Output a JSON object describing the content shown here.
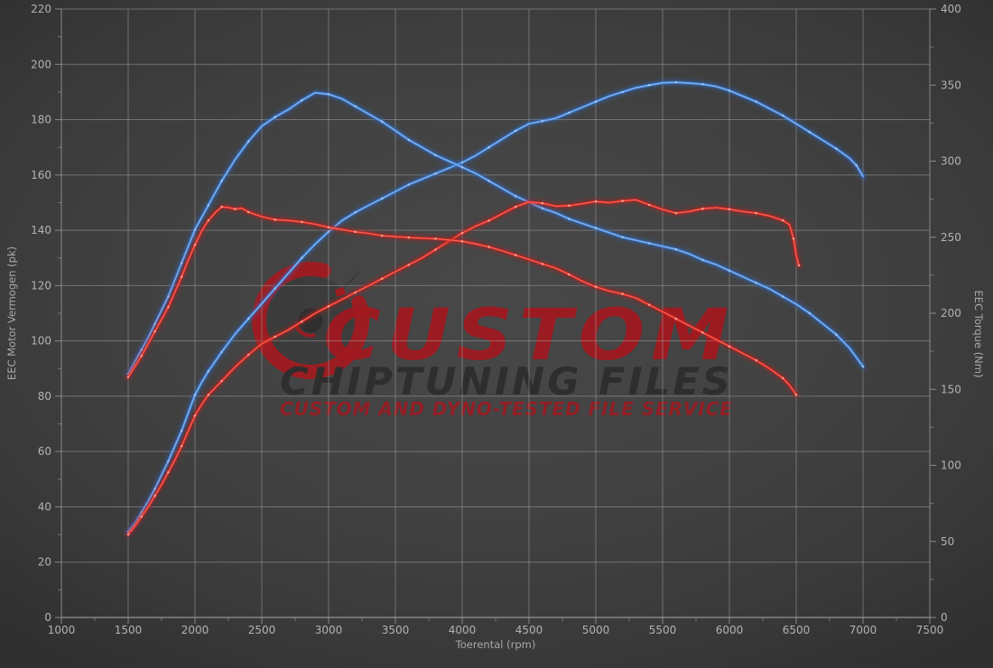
{
  "colors": {
    "background": "#414141",
    "grid": "#a6a6a6",
    "spine": "#9c9c9c",
    "axis_text": "#b2b2b2",
    "blue_core": "#5e9ce8",
    "blue_glow": "#2f6fce",
    "blue_marker": "#a9cdf7",
    "red_core": "#e8352b",
    "red_glow": "#c01d1d",
    "red_marker": "#ffb3a6",
    "watermark_red": "#ab151c",
    "watermark_dark": "#2c2c2c",
    "watermark_sub_red": "#a01820"
  },
  "watermark": {
    "line1": "CUSTOM",
    "line2": "CHIPTUNING FILES",
    "line3": "CUSTOM AND DYNO-TESTED FILE SERVICE"
  },
  "chart_data": {
    "type": "line",
    "title": "",
    "xlabel": "Toerental (rpm)",
    "ylabel_left": "EEC Motor Vermogen (pk)",
    "ylabel_right": "EEC Torque (Nm)",
    "xlim": [
      1000,
      7500
    ],
    "ylim_left": [
      0,
      220
    ],
    "ylim_right": [
      0,
      400
    ],
    "grid": true,
    "legend": "none",
    "x_ticks": [
      1000,
      1500,
      2000,
      2500,
      3000,
      3500,
      4000,
      4500,
      5000,
      5500,
      6000,
      6500,
      7000,
      7500
    ],
    "x_minor_step": 250,
    "y_left_ticks": [
      0,
      20,
      40,
      60,
      80,
      100,
      120,
      140,
      160,
      180,
      200,
      220
    ],
    "y_left_minor_step": 10,
    "y_right_ticks": [
      0,
      50,
      100,
      150,
      200,
      250,
      300,
      350,
      400
    ],
    "y_right_minor_step": 25,
    "series": [
      {
        "name": "tuned-power",
        "unit": "pk",
        "axis": "left",
        "palette": "blue",
        "peak": {
          "rpm": 5550,
          "value": 193.5
        },
        "points": [
          [
            1500,
            31
          ],
          [
            1550,
            34
          ],
          [
            1600,
            38
          ],
          [
            1650,
            42
          ],
          [
            1700,
            46.5
          ],
          [
            1750,
            51.5
          ],
          [
            1800,
            56.5
          ],
          [
            1850,
            62
          ],
          [
            1900,
            67.5
          ],
          [
            1950,
            74
          ],
          [
            2000,
            80.5
          ],
          [
            2050,
            85
          ],
          [
            2100,
            89
          ],
          [
            2150,
            92.5
          ],
          [
            2200,
            96
          ],
          [
            2300,
            102.5
          ],
          [
            2400,
            108
          ],
          [
            2500,
            113.5
          ],
          [
            2600,
            119
          ],
          [
            2700,
            124.5
          ],
          [
            2800,
            130
          ],
          [
            2900,
            135
          ],
          [
            3000,
            139.5
          ],
          [
            3100,
            143.5
          ],
          [
            3200,
            146.5
          ],
          [
            3300,
            149
          ],
          [
            3400,
            151.5
          ],
          [
            3500,
            154
          ],
          [
            3600,
            156.5
          ],
          [
            3700,
            158.5
          ],
          [
            3800,
            160.5
          ],
          [
            3900,
            162.5
          ],
          [
            4000,
            164.5
          ],
          [
            4100,
            167
          ],
          [
            4200,
            170
          ],
          [
            4300,
            173
          ],
          [
            4400,
            176
          ],
          [
            4500,
            178.5
          ],
          [
            4600,
            179.5
          ],
          [
            4700,
            180.5
          ],
          [
            4800,
            182.5
          ],
          [
            4900,
            184.5
          ],
          [
            5000,
            186.5
          ],
          [
            5100,
            188.5
          ],
          [
            5200,
            190
          ],
          [
            5300,
            191.5
          ],
          [
            5400,
            192.5
          ],
          [
            5500,
            193.3
          ],
          [
            5600,
            193.5
          ],
          [
            5700,
            193.2
          ],
          [
            5800,
            192.8
          ],
          [
            5900,
            192
          ],
          [
            6000,
            190.5
          ],
          [
            6100,
            188.5
          ],
          [
            6200,
            186.5
          ],
          [
            6300,
            184
          ],
          [
            6400,
            181.5
          ],
          [
            6500,
            178.5
          ],
          [
            6600,
            175.5
          ],
          [
            6700,
            172.5
          ],
          [
            6800,
            169.5
          ],
          [
            6900,
            166
          ],
          [
            6950,
            163.5
          ],
          [
            7000,
            159.5
          ]
        ]
      },
      {
        "name": "tuned-torque",
        "unit": "Nm",
        "axis": "right",
        "palette": "blue",
        "peak": {
          "rpm": 2900,
          "value": 345
        },
        "points": [
          [
            1500,
            160
          ],
          [
            1550,
            168
          ],
          [
            1600,
            176
          ],
          [
            1650,
            184
          ],
          [
            1700,
            193
          ],
          [
            1750,
            202
          ],
          [
            1800,
            211
          ],
          [
            1850,
            222
          ],
          [
            1900,
            233
          ],
          [
            1950,
            244
          ],
          [
            2000,
            255
          ],
          [
            2050,
            263
          ],
          [
            2100,
            271
          ],
          [
            2150,
            279
          ],
          [
            2200,
            287
          ],
          [
            2300,
            301
          ],
          [
            2400,
            313
          ],
          [
            2500,
            323
          ],
          [
            2600,
            329
          ],
          [
            2700,
            334
          ],
          [
            2800,
            340
          ],
          [
            2900,
            345
          ],
          [
            3000,
            344
          ],
          [
            3100,
            341
          ],
          [
            3200,
            336
          ],
          [
            3300,
            331
          ],
          [
            3400,
            326
          ],
          [
            3500,
            320
          ],
          [
            3600,
            314
          ],
          [
            3700,
            309
          ],
          [
            3800,
            304
          ],
          [
            3900,
            300
          ],
          [
            4000,
            296
          ],
          [
            4100,
            292
          ],
          [
            4200,
            287
          ],
          [
            4300,
            282
          ],
          [
            4400,
            277
          ],
          [
            4500,
            273
          ],
          [
            4600,
            269
          ],
          [
            4700,
            266
          ],
          [
            4800,
            262
          ],
          [
            4900,
            259
          ],
          [
            5000,
            256
          ],
          [
            5100,
            253
          ],
          [
            5200,
            250
          ],
          [
            5300,
            248
          ],
          [
            5400,
            246
          ],
          [
            5500,
            244
          ],
          [
            5600,
            242
          ],
          [
            5700,
            239
          ],
          [
            5800,
            235
          ],
          [
            5900,
            232
          ],
          [
            6000,
            228
          ],
          [
            6100,
            224
          ],
          [
            6200,
            220
          ],
          [
            6300,
            216
          ],
          [
            6400,
            211
          ],
          [
            6500,
            206
          ],
          [
            6600,
            200
          ],
          [
            6700,
            193
          ],
          [
            6800,
            186
          ],
          [
            6900,
            177
          ],
          [
            7000,
            165
          ]
        ]
      },
      {
        "name": "stock-power",
        "unit": "pk",
        "axis": "left",
        "palette": "red",
        "peak": {
          "rpm": 5300,
          "value": 151
        },
        "points": [
          [
            1500,
            30
          ],
          [
            1550,
            33
          ],
          [
            1600,
            36.5
          ],
          [
            1650,
            40
          ],
          [
            1700,
            44
          ],
          [
            1750,
            48
          ],
          [
            1800,
            52.5
          ],
          [
            1850,
            57
          ],
          [
            1900,
            62
          ],
          [
            1950,
            67.5
          ],
          [
            2000,
            73
          ],
          [
            2050,
            77
          ],
          [
            2100,
            80.5
          ],
          [
            2150,
            83
          ],
          [
            2200,
            85.5
          ],
          [
            2300,
            90.5
          ],
          [
            2400,
            95
          ],
          [
            2500,
            99
          ],
          [
            2600,
            101.5
          ],
          [
            2700,
            104
          ],
          [
            2800,
            107
          ],
          [
            2900,
            110
          ],
          [
            3000,
            112.5
          ],
          [
            3100,
            115
          ],
          [
            3200,
            117.5
          ],
          [
            3300,
            120
          ],
          [
            3400,
            122.5
          ],
          [
            3500,
            125
          ],
          [
            3600,
            127.5
          ],
          [
            3700,
            130
          ],
          [
            3800,
            133
          ],
          [
            3900,
            136
          ],
          [
            4000,
            139
          ],
          [
            4100,
            141.5
          ],
          [
            4200,
            143.5
          ],
          [
            4300,
            146
          ],
          [
            4400,
            148.5
          ],
          [
            4500,
            150.2
          ],
          [
            4600,
            149.8
          ],
          [
            4700,
            148.7
          ],
          [
            4800,
            148.9
          ],
          [
            4900,
            149.6
          ],
          [
            5000,
            150.4
          ],
          [
            5100,
            150
          ],
          [
            5200,
            150.6
          ],
          [
            5300,
            151
          ],
          [
            5400,
            149.2
          ],
          [
            5500,
            147.5
          ],
          [
            5600,
            146.2
          ],
          [
            5700,
            146.8
          ],
          [
            5800,
            147.8
          ],
          [
            5900,
            148.2
          ],
          [
            6000,
            147.6
          ],
          [
            6100,
            146.8
          ],
          [
            6200,
            146.2
          ],
          [
            6300,
            145.2
          ],
          [
            6400,
            143.6
          ],
          [
            6450,
            142
          ],
          [
            6480,
            137
          ],
          [
            6500,
            131
          ],
          [
            6520,
            127.3
          ]
        ]
      },
      {
        "name": "stock-torque",
        "unit": "Nm",
        "axis": "right",
        "palette": "red",
        "peak": {
          "rpm": 2200,
          "value": 270
        },
        "points": [
          [
            1500,
            158
          ],
          [
            1550,
            165
          ],
          [
            1600,
            172
          ],
          [
            1650,
            180
          ],
          [
            1700,
            188
          ],
          [
            1750,
            196
          ],
          [
            1800,
            204
          ],
          [
            1850,
            214
          ],
          [
            1900,
            224
          ],
          [
            1950,
            235
          ],
          [
            2000,
            245
          ],
          [
            2050,
            254
          ],
          [
            2100,
            261
          ],
          [
            2150,
            266
          ],
          [
            2200,
            270
          ],
          [
            2250,
            269.5
          ],
          [
            2300,
            268.5
          ],
          [
            2350,
            269
          ],
          [
            2400,
            266.5
          ],
          [
            2500,
            263.5
          ],
          [
            2600,
            261.5
          ],
          [
            2700,
            261
          ],
          [
            2800,
            260
          ],
          [
            2900,
            258.5
          ],
          [
            3000,
            256.5
          ],
          [
            3100,
            255
          ],
          [
            3200,
            253.5
          ],
          [
            3300,
            252.5
          ],
          [
            3400,
            251
          ],
          [
            3500,
            250.3
          ],
          [
            3600,
            249.8
          ],
          [
            3700,
            249.3
          ],
          [
            3800,
            249
          ],
          [
            3900,
            248.2
          ],
          [
            4000,
            247.3
          ],
          [
            4100,
            245.6
          ],
          [
            4200,
            243.6
          ],
          [
            4300,
            241
          ],
          [
            4400,
            238.2
          ],
          [
            4500,
            235.4
          ],
          [
            4600,
            232.4
          ],
          [
            4700,
            229.7
          ],
          [
            4800,
            225.5
          ],
          [
            4900,
            221
          ],
          [
            5000,
            217.3
          ],
          [
            5100,
            214.6
          ],
          [
            5200,
            212.7
          ],
          [
            5300,
            210
          ],
          [
            5400,
            205.5
          ],
          [
            5500,
            201
          ],
          [
            5600,
            196.4
          ],
          [
            5700,
            191.8
          ],
          [
            5800,
            187.3
          ],
          [
            5900,
            182.7
          ],
          [
            6000,
            178.2
          ],
          [
            6100,
            173.6
          ],
          [
            6200,
            169.1
          ],
          [
            6300,
            163.6
          ],
          [
            6400,
            157.3
          ],
          [
            6450,
            152.7
          ],
          [
            6500,
            146.4
          ]
        ]
      }
    ]
  }
}
